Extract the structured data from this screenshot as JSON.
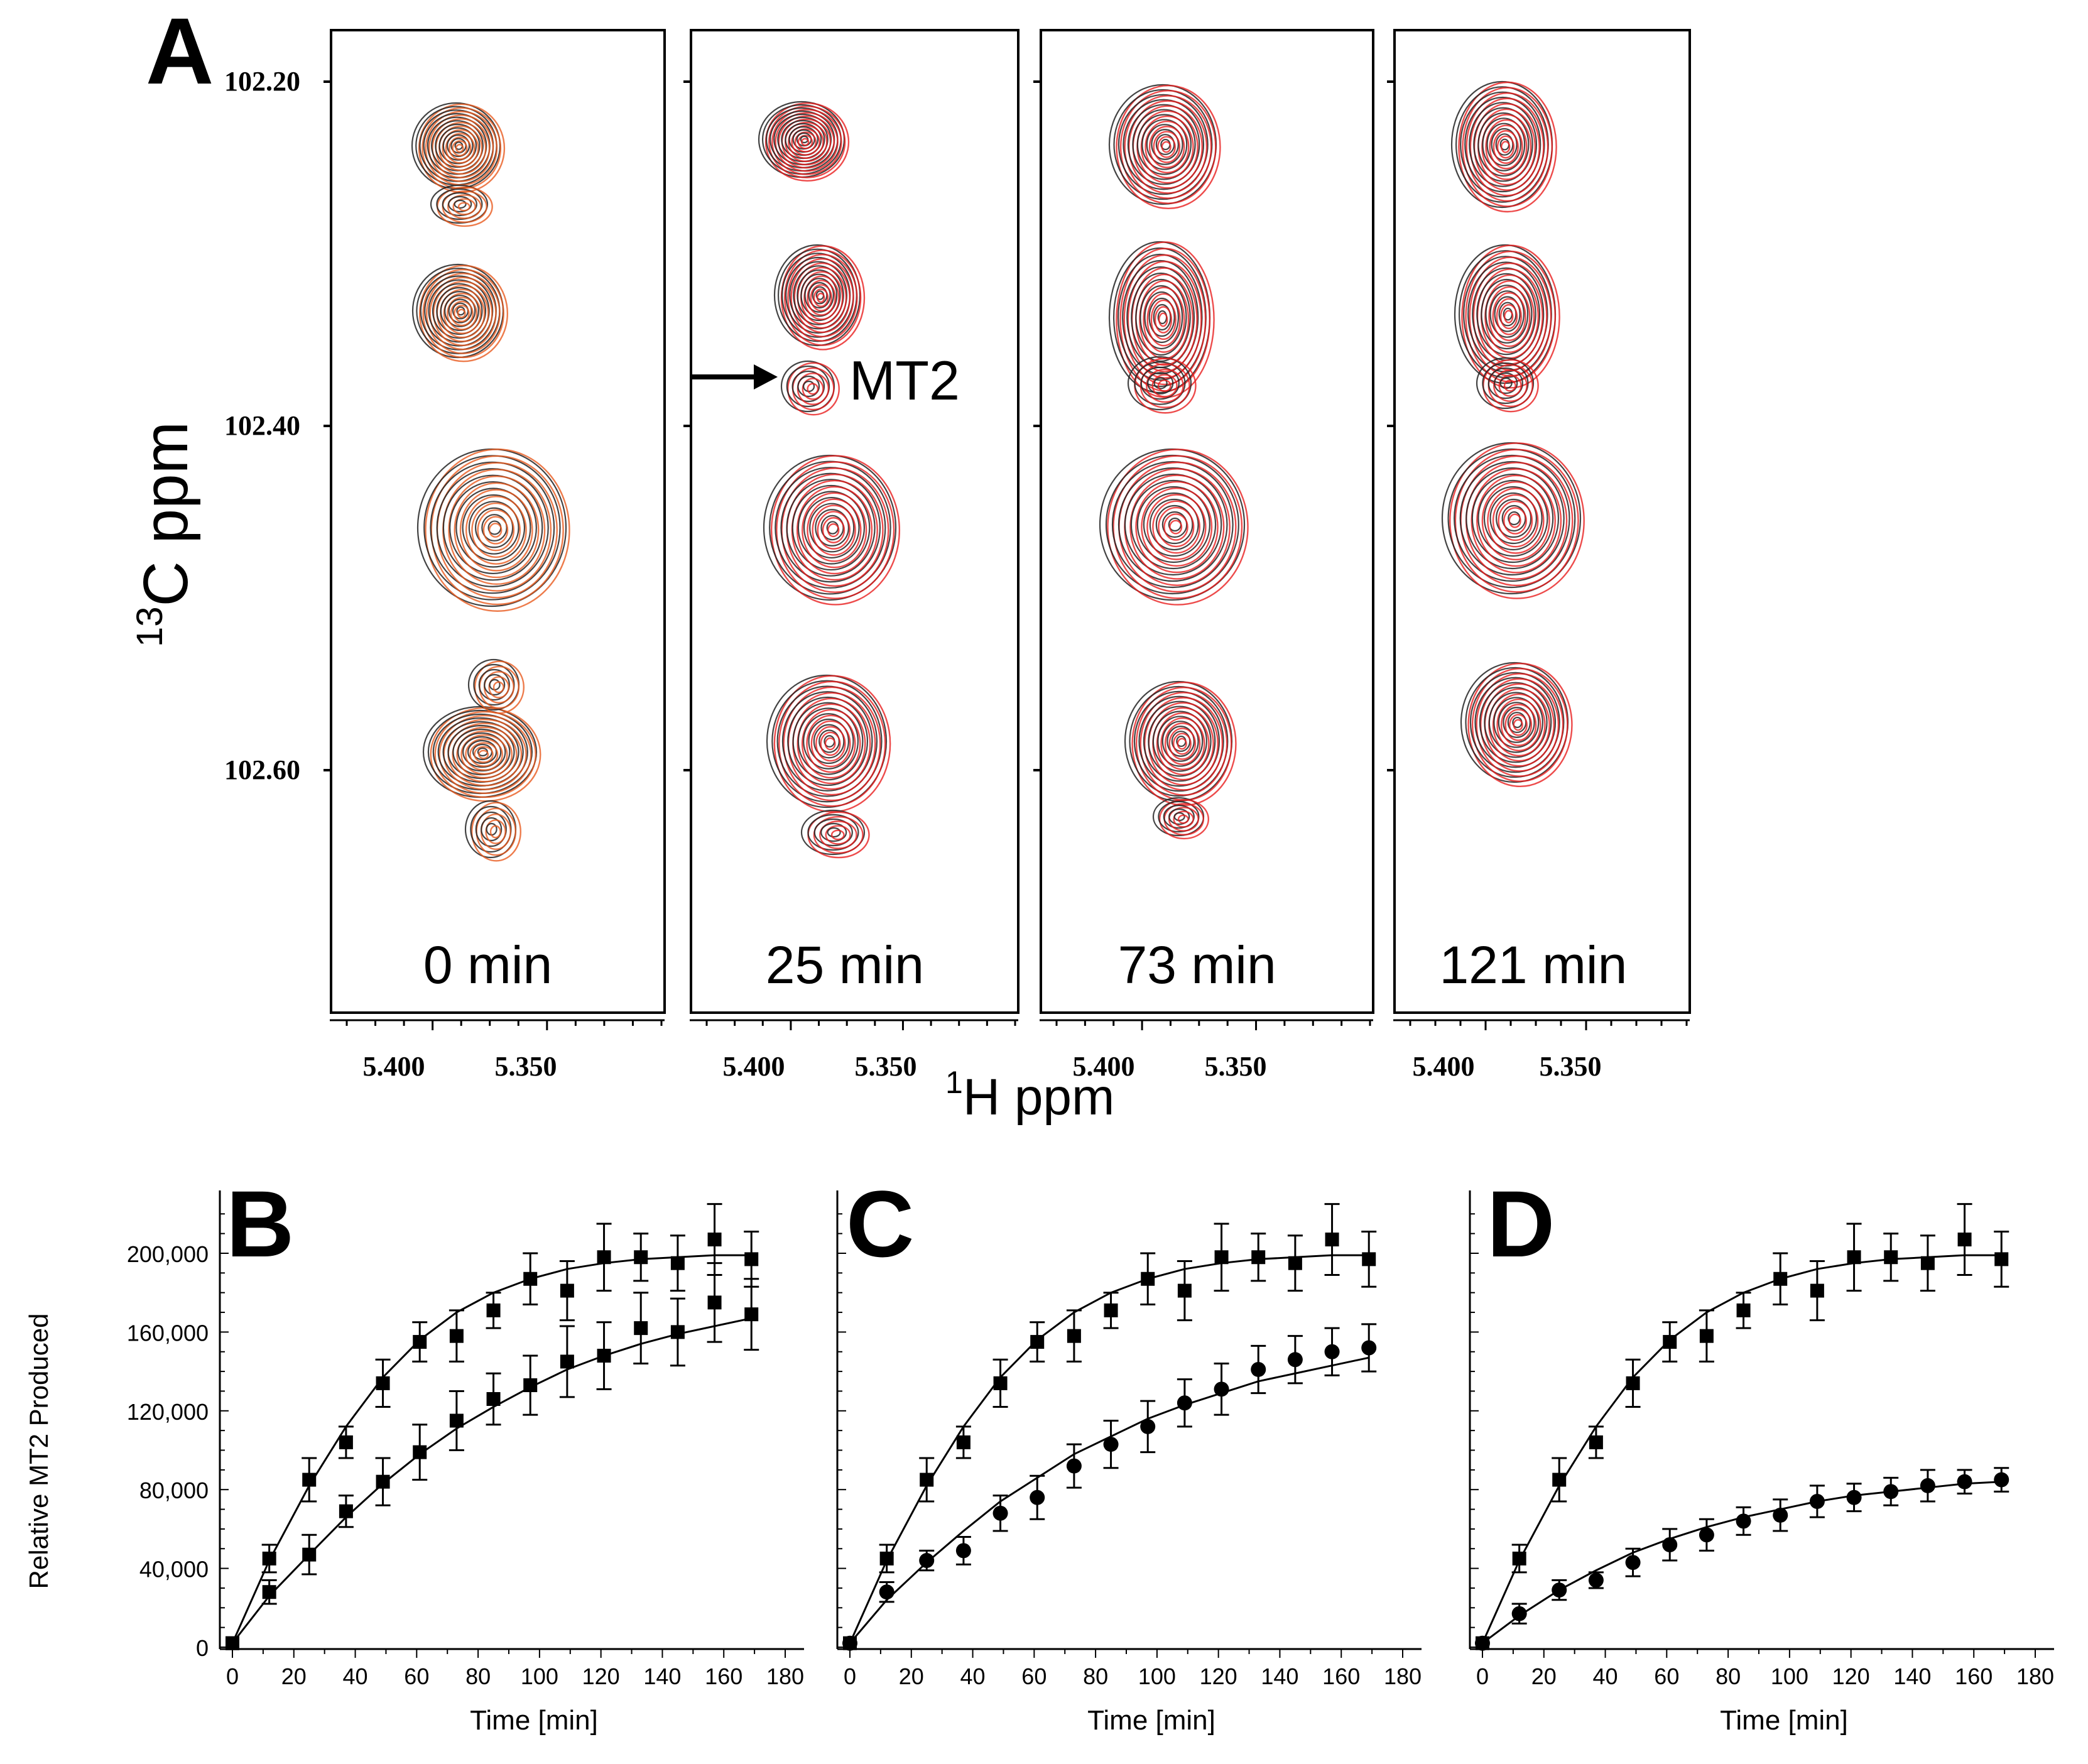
{
  "panel_A": {
    "letter": "A",
    "ylabel_sup": "13",
    "ylabel_main": "C  ppm",
    "xlabel_sup": "1",
    "xlabel_main": "H  ppm",
    "y_ticks": [
      "102.20",
      "102.40",
      "102.60"
    ],
    "x_ticks": [
      "5.400",
      "5.350"
    ],
    "annotation": "MT2",
    "spectra": [
      {
        "time_label": "0 min",
        "color": "#e85a1e"
      },
      {
        "time_label": "25 min",
        "color": "#e81e1e"
      },
      {
        "time_label": "73 min",
        "color": "#e81e1e"
      },
      {
        "time_label": "121 min",
        "color": "#e81e1e"
      }
    ]
  },
  "chart_data": [
    {
      "type": "scatter",
      "panel": "B",
      "xlabel": "Time [min]",
      "ylabel": "Relative MT2 Produced",
      "xlim": [
        0,
        180
      ],
      "ylim": [
        0,
        220000
      ],
      "x_ticks": [
        "0",
        "20",
        "40",
        "60",
        "80",
        "100",
        "120",
        "140",
        "160",
        "180"
      ],
      "y_ticks": [
        "0",
        "40,000",
        "80,000",
        "120,000",
        "160,000",
        "200,000"
      ],
      "series": [
        {
          "marker": "square",
          "x": [
            0,
            12,
            25,
            37,
            49,
            61,
            73,
            85,
            97,
            109,
            121,
            133,
            145,
            157,
            169
          ],
          "y": [
            2000,
            45000,
            85000,
            104000,
            134000,
            155000,
            158000,
            171000,
            187000,
            181000,
            198000,
            198000,
            195000,
            207000,
            197000
          ],
          "err": [
            0,
            7000,
            11000,
            8000,
            12000,
            10000,
            13000,
            9000,
            13000,
            15000,
            17000,
            12000,
            14000,
            18000,
            14000
          ],
          "fit": [
            2000,
            44000,
            82000,
            112000,
            137000,
            156000,
            170000,
            180000,
            187000,
            192000,
            195000,
            197000,
            198000,
            199000,
            199000
          ]
        },
        {
          "marker": "square",
          "x": [
            0,
            12,
            25,
            37,
            49,
            61,
            73,
            85,
            97,
            109,
            121,
            133,
            145,
            157,
            169
          ],
          "y": [
            2000,
            28000,
            47000,
            69000,
            84000,
            99000,
            115000,
            126000,
            133000,
            145000,
            148000,
            162000,
            160000,
            175000,
            169000
          ],
          "err": [
            0,
            6000,
            10000,
            8000,
            12000,
            14000,
            15000,
            13000,
            15000,
            18000,
            17000,
            18000,
            17000,
            20000,
            18000
          ],
          "fit": [
            2000,
            26000,
            47000,
            66000,
            83000,
            98000,
            111000,
            122000,
            132000,
            141000,
            148000,
            154000,
            159000,
            163000,
            167000
          ]
        }
      ]
    },
    {
      "type": "scatter",
      "panel": "C",
      "xlabel": "Time [min]",
      "xlim": [
        0,
        180
      ],
      "ylim": [
        0,
        220000
      ],
      "x_ticks": [
        "0",
        "20",
        "40",
        "60",
        "80",
        "100",
        "120",
        "140",
        "160",
        "180"
      ],
      "series": [
        {
          "marker": "square",
          "x": [
            0,
            12,
            25,
            37,
            49,
            61,
            73,
            85,
            97,
            109,
            121,
            133,
            145,
            157,
            169
          ],
          "y": [
            2000,
            45000,
            85000,
            104000,
            134000,
            155000,
            158000,
            171000,
            187000,
            181000,
            198000,
            198000,
            195000,
            207000,
            197000
          ],
          "err": [
            0,
            7000,
            11000,
            8000,
            12000,
            10000,
            13000,
            9000,
            13000,
            15000,
            17000,
            12000,
            14000,
            18000,
            14000
          ],
          "fit": [
            2000,
            44000,
            82000,
            112000,
            137000,
            156000,
            170000,
            180000,
            187000,
            192000,
            195000,
            197000,
            198000,
            199000,
            199000
          ]
        },
        {
          "marker": "circle",
          "x": [
            0,
            12,
            25,
            37,
            49,
            61,
            73,
            85,
            97,
            109,
            121,
            133,
            145,
            157,
            169
          ],
          "y": [
            2000,
            28000,
            44000,
            49000,
            68000,
            76000,
            92000,
            103000,
            112000,
            124000,
            131000,
            141000,
            146000,
            150000,
            152000
          ],
          "err": [
            0,
            5000,
            5000,
            7000,
            9000,
            11000,
            11000,
            12000,
            13000,
            12000,
            13000,
            12000,
            12000,
            12000,
            12000
          ],
          "fit": [
            2000,
            24000,
            43000,
            59000,
            74000,
            86000,
            98000,
            107000,
            116000,
            123000,
            129000,
            135000,
            139000,
            143000,
            147000
          ]
        }
      ]
    },
    {
      "type": "scatter",
      "panel": "D",
      "xlabel": "Time [min]",
      "xlim": [
        0,
        180
      ],
      "ylim": [
        0,
        220000
      ],
      "x_ticks": [
        "0",
        "20",
        "40",
        "60",
        "80",
        "100",
        "120",
        "140",
        "160",
        "180"
      ],
      "series": [
        {
          "marker": "square",
          "x": [
            0,
            12,
            25,
            37,
            49,
            61,
            73,
            85,
            97,
            109,
            121,
            133,
            145,
            157,
            169
          ],
          "y": [
            2000,
            45000,
            85000,
            104000,
            134000,
            155000,
            158000,
            171000,
            187000,
            181000,
            198000,
            198000,
            195000,
            207000,
            197000
          ],
          "err": [
            0,
            7000,
            11000,
            8000,
            12000,
            10000,
            13000,
            9000,
            13000,
            15000,
            17000,
            12000,
            14000,
            18000,
            14000
          ],
          "fit": [
            2000,
            44000,
            82000,
            112000,
            137000,
            156000,
            170000,
            180000,
            187000,
            192000,
            195000,
            197000,
            198000,
            199000,
            199000
          ]
        },
        {
          "marker": "circle",
          "x": [
            0,
            12,
            25,
            37,
            49,
            61,
            73,
            85,
            97,
            109,
            121,
            133,
            145,
            157,
            169
          ],
          "y": [
            2000,
            17000,
            29000,
            34000,
            43000,
            52000,
            57000,
            64000,
            67000,
            74000,
            76000,
            79000,
            82000,
            84000,
            85000
          ],
          "err": [
            0,
            5000,
            5000,
            4000,
            7000,
            8000,
            8000,
            7000,
            8000,
            8000,
            7000,
            7000,
            8000,
            6000,
            6000
          ],
          "fit": [
            2000,
            16000,
            29000,
            39000,
            48000,
            55000,
            61000,
            66000,
            70000,
            74000,
            77000,
            79000,
            81000,
            83000,
            84000
          ]
        }
      ]
    }
  ]
}
